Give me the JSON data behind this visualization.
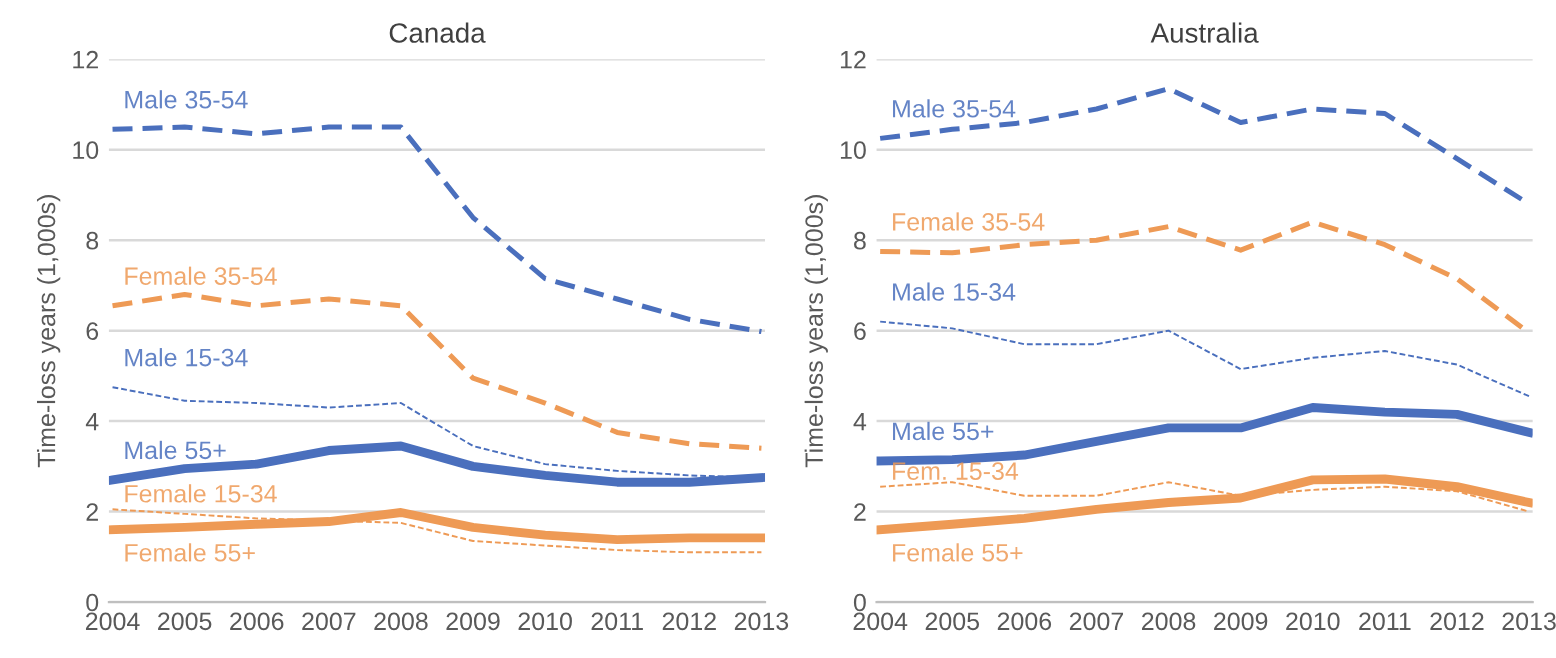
{
  "chart_data": [
    {
      "type": "line",
      "title": "Canada",
      "ylabel": "Time-loss years (1,000s)",
      "categories": [
        "2004",
        "2005",
        "2006",
        "2007",
        "2008",
        "2009",
        "2010",
        "2011",
        "2012",
        "2013"
      ],
      "ylim": [
        0,
        12
      ],
      "yticks": [
        0,
        2,
        4,
        6,
        8,
        10,
        12
      ],
      "grid": "y",
      "legend": false,
      "series": [
        {
          "name": "Male 35-54",
          "color": "#4a6fbd",
          "line_style": "dashed",
          "values": [
            10.45,
            10.5,
            10.35,
            10.5,
            10.5,
            8.5,
            7.15,
            6.7,
            6.25,
            5.98
          ]
        },
        {
          "name": "Female 35-54",
          "color": "#ee9a55",
          "line_style": "dashed",
          "values": [
            6.55,
            6.8,
            6.55,
            6.7,
            6.55,
            4.95,
            4.4,
            3.75,
            3.5,
            3.4
          ]
        },
        {
          "name": "Male 15-34",
          "color": "#4a6fbd",
          "line_style": "dotted",
          "values": [
            4.75,
            4.45,
            4.4,
            4.3,
            4.4,
            3.45,
            3.05,
            2.9,
            2.8,
            2.75
          ]
        },
        {
          "name": "Male 55+",
          "color": "#4a6fbd",
          "line_style": "solid",
          "values": [
            2.7,
            2.95,
            3.05,
            3.35,
            3.45,
            3.0,
            2.8,
            2.65,
            2.65,
            2.75
          ]
        },
        {
          "name": "Female 15-34",
          "color": "#ee9a55",
          "line_style": "dotted",
          "values": [
            2.05,
            1.95,
            1.85,
            1.8,
            1.75,
            1.35,
            1.25,
            1.15,
            1.1,
            1.1
          ]
        },
        {
          "name": "Female 55+",
          "color": "#ee9a55",
          "line_style": "solid",
          "values": [
            1.6,
            1.65,
            1.72,
            1.78,
            1.98,
            1.65,
            1.48,
            1.38,
            1.42,
            1.42
          ]
        }
      ]
    },
    {
      "type": "line",
      "title": "Australia",
      "ylabel": "Time-loss years (1,000s)",
      "categories": [
        "2004",
        "2005",
        "2006",
        "2007",
        "2008",
        "2009",
        "2010",
        "2011",
        "2012",
        "2013"
      ],
      "ylim": [
        0,
        12
      ],
      "yticks": [
        0,
        2,
        4,
        6,
        8,
        10,
        12
      ],
      "grid": "y",
      "legend": false,
      "series": [
        {
          "name": "Male 35-54",
          "color": "#4a6fbd",
          "line_style": "dashed",
          "values": [
            10.25,
            10.45,
            10.6,
            10.9,
            11.35,
            10.6,
            10.9,
            10.8,
            9.8,
            8.8
          ]
        },
        {
          "name": "Female 35-54",
          "color": "#ee9a55",
          "line_style": "dashed",
          "values": [
            7.75,
            7.72,
            7.9,
            8.0,
            8.3,
            7.78,
            8.4,
            7.9,
            7.15,
            5.95
          ]
        },
        {
          "name": "Male 15-34",
          "color": "#4a6fbd",
          "line_style": "dotted",
          "values": [
            6.2,
            6.05,
            5.7,
            5.7,
            6.0,
            5.15,
            5.4,
            5.55,
            5.25,
            4.55
          ]
        },
        {
          "name": "Male 55+",
          "color": "#4a6fbd",
          "line_style": "solid",
          "values": [
            3.12,
            3.15,
            3.25,
            3.55,
            3.85,
            3.85,
            4.3,
            4.2,
            4.15,
            3.75
          ]
        },
        {
          "name": "Fem. 15-34",
          "color": "#ee9a55",
          "line_style": "dotted",
          "values": [
            2.55,
            2.65,
            2.35,
            2.35,
            2.65,
            2.35,
            2.48,
            2.55,
            2.45,
            2.0
          ]
        },
        {
          "name": "Female 55+",
          "color": "#ee9a55",
          "line_style": "solid",
          "values": [
            1.6,
            1.72,
            1.85,
            2.05,
            2.2,
            2.3,
            2.7,
            2.72,
            2.55,
            2.2
          ]
        }
      ]
    }
  ]
}
